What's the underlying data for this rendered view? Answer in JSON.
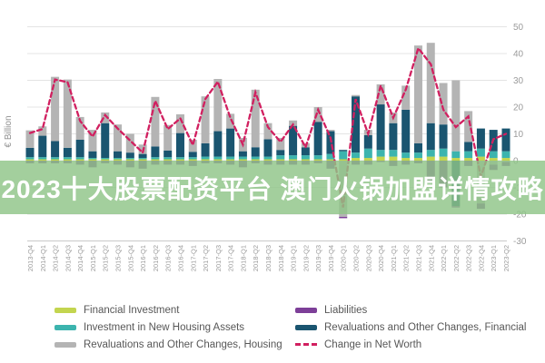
{
  "banner": {
    "text": "2023十大股票配资平台 澳门火锅加盟详情攻略",
    "background_color": "#8fc588",
    "text_color": "#ffffff"
  },
  "chart_data": {
    "type": "bar",
    "subtype": "stacked-bar-with-line",
    "title": "",
    "xlabel": "",
    "ylabel": "€ Billion",
    "ylim": [
      -30,
      50
    ],
    "y_ticks": [
      50,
      40,
      30,
      20,
      10,
      0,
      -10,
      -20,
      -30
    ],
    "grid": true,
    "legend_position": "bottom",
    "categories": [
      "2013-Q4",
      "2014-Q1",
      "2014-Q2",
      "2014-Q3",
      "2014-Q4",
      "2015-Q1",
      "2015-Q2",
      "2015-Q3",
      "2015-Q4",
      "2016-Q1",
      "2016-Q2",
      "2016-Q3",
      "2016-Q4",
      "2017-Q1",
      "2017-Q2",
      "2017-Q3",
      "2017-Q4",
      "2018-Q1",
      "2018-Q2",
      "2018-Q3",
      "2018-Q4",
      "2019-Q1",
      "2019-Q2",
      "2019-Q3",
      "2019-Q4",
      "2020-Q1",
      "2020-Q2",
      "2020-Q3",
      "2020-Q4",
      "2021-Q1",
      "2021-Q2",
      "2021-Q3",
      "2021-Q4",
      "2022-Q1",
      "2022-Q2",
      "2022-Q3",
      "2022-Q4",
      "2023-Q1",
      "2023-Q2"
    ],
    "series": [
      {
        "name": "Financial Investment",
        "color": "#c3d54f",
        "values": [
          0.5,
          0.5,
          0.5,
          0.5,
          0.5,
          0.5,
          0.5,
          0.5,
          0.5,
          0.5,
          0.5,
          0.5,
          0.5,
          0.5,
          0.5,
          0.5,
          0.5,
          0.5,
          0.5,
          0.5,
          0.5,
          0.5,
          0.5,
          0.5,
          0.5,
          0.5,
          1.0,
          1.0,
          1.5,
          1.5,
          1.0,
          1.0,
          1.5,
          1.5,
          1.0,
          1.0,
          1.5,
          1.0,
          1.0
        ]
      },
      {
        "name": "Investment in New Housing Assets",
        "color": "#3cb4ae",
        "values": [
          0.8,
          0.8,
          0.8,
          0.8,
          0.8,
          0.5,
          0.5,
          0.5,
          0.5,
          0.5,
          0.8,
          0.8,
          0.8,
          0.8,
          1.0,
          1.0,
          1.0,
          1.0,
          1.0,
          1.0,
          1.5,
          1.5,
          1.5,
          1.5,
          2.0,
          3.0,
          2.0,
          3.5,
          2.5,
          2.5,
          2.0,
          2.0,
          2.5,
          3.0,
          2.5,
          2.5,
          3.0,
          2.5,
          2.5
        ]
      },
      {
        "name": "Revaluations and Other Changes, Financial",
        "color": "#1a5570",
        "values": [
          3.5,
          8.0,
          6.0,
          3.5,
          6.5,
          2.5,
          13.0,
          2.5,
          2.0,
          1.5,
          4.0,
          2.5,
          9.0,
          2.0,
          5.0,
          9.5,
          10.5,
          2.0,
          3.5,
          6.5,
          2.0,
          11.0,
          3.0,
          12.5,
          8.5,
          0.5,
          21.0,
          5.0,
          17.0,
          10.0,
          16.0,
          3.5,
          10.0,
          9.0,
          -17.0,
          3.5,
          7.5,
          8.0,
          8.5
        ]
      },
      {
        "name": "Revaluations and Other Changes, Housing",
        "color": "#b4b4b4",
        "values": [
          6.5,
          3.5,
          24.0,
          25.5,
          8.5,
          8.0,
          4.0,
          10.0,
          7.0,
          3.5,
          18.5,
          9.5,
          7.0,
          4.5,
          17.5,
          19.5,
          5.5,
          5.0,
          21.5,
          6.0,
          4.5,
          2.0,
          1.5,
          5.5,
          0.5,
          -21.0,
          0.5,
          2.0,
          7.5,
          4.0,
          9.0,
          36.5,
          30.0,
          15.5,
          26.5,
          11.5,
          -16.0,
          -1.5,
          -0.5
        ]
      },
      {
        "name": "Liabilities",
        "color": "#7d3f98",
        "values": [
          -1.0,
          -1.0,
          -1.0,
          -1.0,
          -1.5,
          -2.5,
          -1.0,
          -1.5,
          -2.5,
          -3.0,
          -1.5,
          -1.5,
          -1.5,
          -2.0,
          -1.0,
          -1.0,
          -1.5,
          -2.5,
          -1.0,
          -1.5,
          -1.5,
          -1.5,
          -1.5,
          -1.0,
          -3.0,
          -0.5,
          -1.5,
          -1.5,
          -0.5,
          -2.0,
          -1.5,
          -1.0,
          -8.0,
          -10.0,
          -0.5,
          -2.0,
          -2.0,
          -2.0,
          -1.5
        ]
      }
    ],
    "line_series": {
      "name": "Change in Net Worth",
      "color": "#d12060",
      "style": "dashed",
      "values": [
        10.3,
        11.8,
        30.3,
        29.3,
        14.8,
        9.0,
        17.0,
        12.0,
        7.5,
        3.0,
        22.3,
        11.8,
        15.8,
        5.8,
        23.0,
        29.5,
        16.0,
        6.0,
        25.5,
        12.5,
        7.0,
        13.5,
        5.0,
        19.0,
        8.5,
        -17.5,
        23.0,
        10.0,
        28.0,
        16.0,
        26.5,
        42.0,
        36.0,
        19.0,
        12.5,
        16.5,
        -6.0,
        8.0,
        10.0
      ]
    }
  },
  "legend": {
    "columns": [
      {
        "items": [
          {
            "label": "Financial Investment",
            "color": "#c3d54f",
            "type": "solid"
          },
          {
            "label": "Investment in New Housing Assets",
            "color": "#3cb4ae",
            "type": "solid"
          },
          {
            "label": "Revaluations and Other Changes, Housing",
            "color": "#b4b4b4",
            "type": "solid"
          }
        ]
      },
      {
        "items": [
          {
            "label": "Liabilities",
            "color": "#7d3f98",
            "type": "solid"
          },
          {
            "label": "Revaluations and Other Changes, Financial",
            "color": "#1a5570",
            "type": "solid"
          },
          {
            "label": "Change in Net Worth",
            "color": "#d12060",
            "type": "dashed"
          }
        ]
      }
    ]
  },
  "style": {
    "gridline_color": "#e4e4e4",
    "axis_bottom_color": "#c9c9c9",
    "tick_text_color": "#9b9b9b"
  }
}
